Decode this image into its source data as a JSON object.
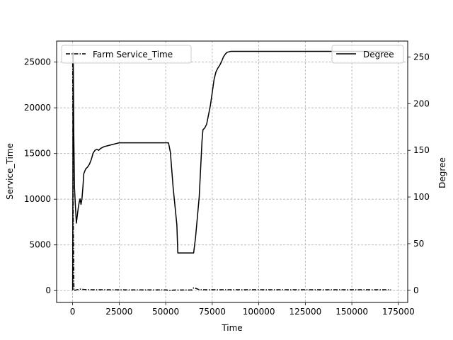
{
  "chart_data": {
    "type": "line",
    "xlabel": "Time",
    "ylabel_left": "Service_Time",
    "ylabel_right": "Degree",
    "xlim": [
      -8600,
      180000
    ],
    "ylim_left": [
      -1300,
      27300
    ],
    "ylim_right": [
      -13,
      267
    ],
    "xticks": [
      0,
      25000,
      50000,
      75000,
      100000,
      125000,
      150000,
      175000
    ],
    "yticks_left": [
      0,
      5000,
      10000,
      15000,
      20000,
      25000
    ],
    "yticks_right": [
      0,
      50,
      100,
      150,
      200,
      250
    ],
    "grid": true,
    "legends": [
      {
        "placement": "top-left",
        "label": "Farm Service_Time"
      },
      {
        "placement": "top-right",
        "label": "Degree"
      }
    ],
    "series": [
      {
        "name": "Farm Service_Time",
        "axis": "left",
        "style": "dashdot",
        "points": [
          [
            0,
            25800
          ],
          [
            300,
            8000
          ],
          [
            700,
            0
          ],
          [
            2000,
            80
          ],
          [
            4000,
            160
          ],
          [
            6000,
            120
          ],
          [
            10000,
            100
          ],
          [
            20000,
            90
          ],
          [
            30000,
            80
          ],
          [
            40000,
            80
          ],
          [
            50000,
            80
          ],
          [
            52000,
            20
          ],
          [
            55000,
            70
          ],
          [
            60000,
            70
          ],
          [
            64000,
            70
          ],
          [
            65000,
            300
          ],
          [
            66000,
            250
          ],
          [
            68000,
            100
          ],
          [
            75000,
            100
          ],
          [
            100000,
            100
          ],
          [
            125000,
            100
          ],
          [
            150000,
            100
          ],
          [
            171000,
            100
          ]
        ]
      },
      {
        "name": "Degree",
        "axis": "right",
        "style": "solid",
        "points": [
          [
            0,
            0
          ],
          [
            300,
            255
          ],
          [
            600,
            170
          ],
          [
            1000,
            110
          ],
          [
            1500,
            90
          ],
          [
            2000,
            72
          ],
          [
            2500,
            80
          ],
          [
            3000,
            88
          ],
          [
            3500,
            94
          ],
          [
            4000,
            98
          ],
          [
            4500,
            92
          ],
          [
            5000,
            98
          ],
          [
            5500,
            110
          ],
          [
            6000,
            125
          ],
          [
            7000,
            130
          ],
          [
            8000,
            132
          ],
          [
            9000,
            135
          ],
          [
            10000,
            140
          ],
          [
            11000,
            147
          ],
          [
            12000,
            150
          ],
          [
            13000,
            151
          ],
          [
            14000,
            150
          ],
          [
            15000,
            152
          ],
          [
            17000,
            154
          ],
          [
            19000,
            155
          ],
          [
            21000,
            156
          ],
          [
            23000,
            157
          ],
          [
            25000,
            158
          ],
          [
            30000,
            158
          ],
          [
            40000,
            158
          ],
          [
            50000,
            158
          ],
          [
            51500,
            158
          ],
          [
            52500,
            148
          ],
          [
            54000,
            110
          ],
          [
            56000,
            70
          ],
          [
            56500,
            40
          ],
          [
            60000,
            40
          ],
          [
            65000,
            40
          ],
          [
            66000,
            56
          ],
          [
            68000,
            100
          ],
          [
            69500,
            160
          ],
          [
            70000,
            172
          ],
          [
            71000,
            174
          ],
          [
            72000,
            178
          ],
          [
            73000,
            188
          ],
          [
            74000,
            198
          ],
          [
            75000,
            212
          ],
          [
            76000,
            226
          ],
          [
            77000,
            234
          ],
          [
            78000,
            238
          ],
          [
            79000,
            241
          ],
          [
            80000,
            245
          ],
          [
            81000,
            250
          ],
          [
            82000,
            253
          ],
          [
            83000,
            255
          ],
          [
            85000,
            256
          ],
          [
            100000,
            256
          ],
          [
            125000,
            256
          ],
          [
            150000,
            256
          ],
          [
            171000,
            256
          ]
        ]
      }
    ]
  }
}
